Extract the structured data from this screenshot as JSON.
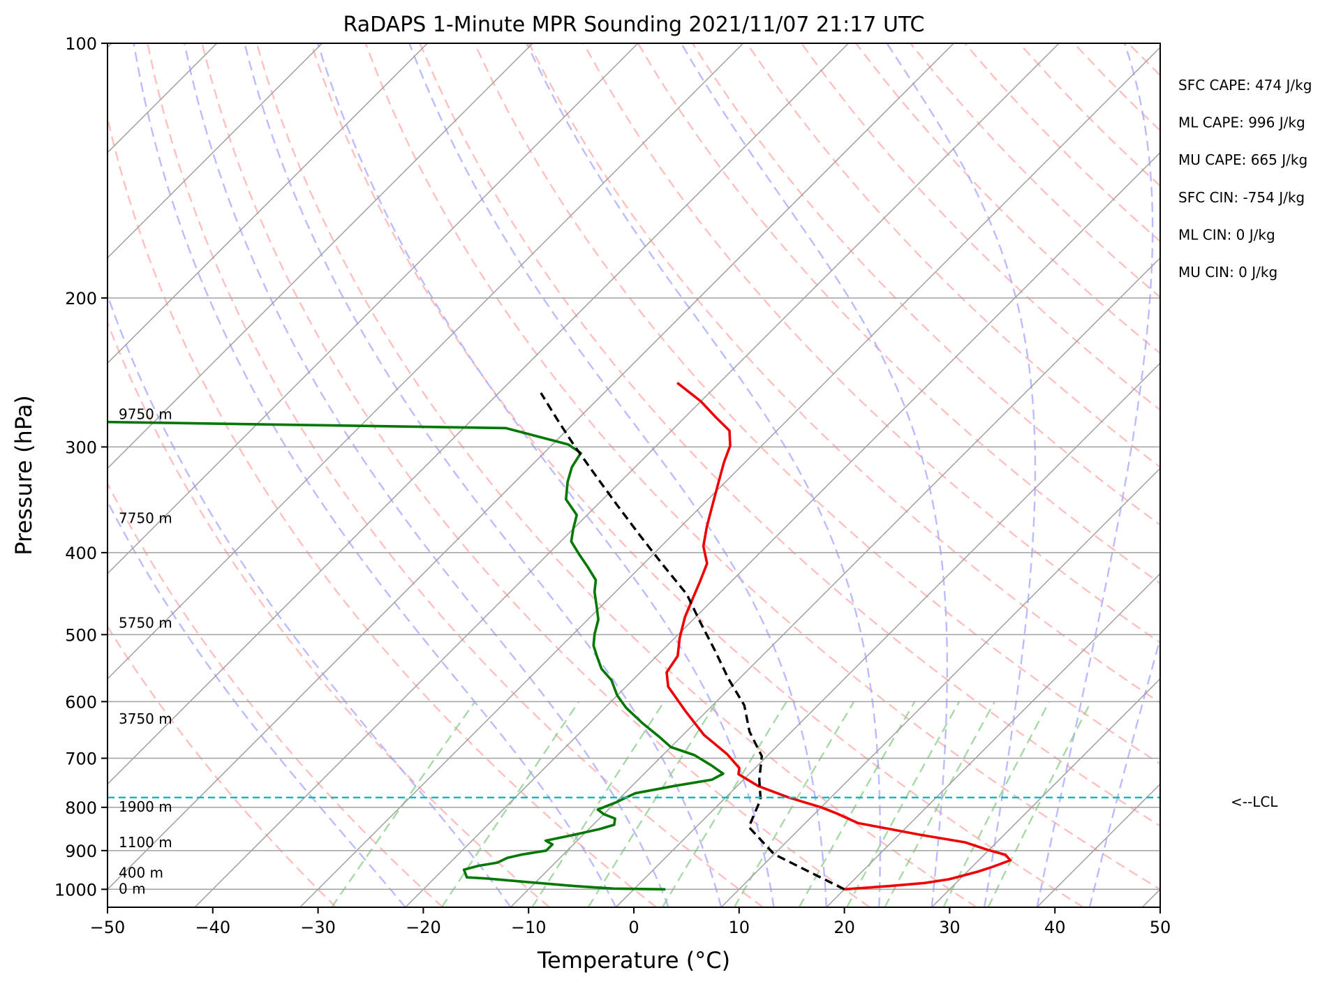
{
  "chart_data": {
    "type": "line",
    "title": "RaDAPS 1-Minute MPR Sounding 2021/11/07 21:17 UTC",
    "xlabel": "Temperature (°C)",
    "ylabel": "Pressure (hPa)",
    "xlim": [
      -50,
      50
    ],
    "ylim": [
      1050,
      100
    ],
    "y_scale": "log",
    "x_ticks": [
      -50,
      -40,
      -30,
      -20,
      -10,
      0,
      10,
      20,
      30,
      40,
      50
    ],
    "x_tick_labels": [
      "−50",
      "−40",
      "−30",
      "−20",
      "−10",
      "0",
      "10",
      "20",
      "30",
      "40",
      "50"
    ],
    "y_ticks": [
      100,
      200,
      300,
      400,
      500,
      600,
      700,
      800,
      900,
      1000
    ],
    "y_tick_labels": [
      "100",
      "200",
      "300",
      "400",
      "500",
      "600",
      "700",
      "800",
      "900",
      "1000"
    ],
    "grid": true,
    "skew": "skew-T (isotherms slanted)",
    "series": [
      {
        "role": "temperature",
        "color": "#ee0000",
        "points": [
          [
            20,
            1000
          ],
          [
            24,
            991
          ],
          [
            27,
            983
          ],
          [
            29,
            973
          ],
          [
            31,
            953
          ],
          [
            32,
            940
          ],
          [
            33,
            924
          ],
          [
            32,
            910
          ],
          [
            30,
            899
          ],
          [
            27,
            880
          ],
          [
            22,
            862
          ],
          [
            15,
            835
          ],
          [
            12,
            813
          ],
          [
            10,
            800
          ],
          [
            6,
            779
          ],
          [
            2,
            755
          ],
          [
            -1,
            731
          ],
          [
            -1.5,
            719
          ],
          [
            -4,
            692
          ],
          [
            -8,
            657
          ],
          [
            -12,
            616
          ],
          [
            -16,
            576
          ],
          [
            -17.5,
            554
          ],
          [
            -18,
            530
          ],
          [
            -19.5,
            505
          ],
          [
            -21,
            477
          ],
          [
            -22,
            454
          ],
          [
            -23,
            432
          ],
          [
            -24,
            412
          ],
          [
            -26,
            393
          ],
          [
            -27.5,
            373
          ],
          [
            -29,
            352
          ],
          [
            -30.5,
            332
          ],
          [
            -32,
            313
          ],
          [
            -33,
            299
          ],
          [
            -34.5,
            287
          ],
          [
            -37,
            277
          ],
          [
            -40,
            265
          ],
          [
            -44,
            252
          ]
        ]
      },
      {
        "role": "dewpoint",
        "color": "#007700",
        "points": [
          [
            3,
            1000
          ],
          [
            -2,
            998
          ],
          [
            -6,
            991
          ],
          [
            -11,
            980
          ],
          [
            -15,
            971
          ],
          [
            -17,
            968
          ],
          [
            -17.5,
            958
          ],
          [
            -18,
            948
          ],
          [
            -17,
            938
          ],
          [
            -15.5,
            930
          ],
          [
            -15,
            918
          ],
          [
            -14,
            910
          ],
          [
            -12,
            900
          ],
          [
            -12,
            885
          ],
          [
            -13,
            876
          ],
          [
            -11,
            863
          ],
          [
            -9,
            849
          ],
          [
            -8,
            839
          ],
          [
            -8.5,
            825
          ],
          [
            -10,
            815
          ],
          [
            -11,
            805
          ],
          [
            -10,
            790
          ],
          [
            -9,
            770
          ],
          [
            -6,
            755
          ],
          [
            -3,
            742
          ],
          [
            -2.5,
            730
          ],
          [
            -4.5,
            713
          ],
          [
            -7,
            694
          ],
          [
            -10,
            679
          ],
          [
            -12,
            661
          ],
          [
            -15,
            636
          ],
          [
            -18,
            610
          ],
          [
            -20,
            590
          ],
          [
            -22,
            566
          ],
          [
            -24,
            549
          ],
          [
            -25.5,
            532
          ],
          [
            -27,
            515
          ],
          [
            -28,
            499
          ],
          [
            -29,
            480
          ],
          [
            -30.5,
            462
          ],
          [
            -32,
            445
          ],
          [
            -33,
            431
          ],
          [
            -35,
            416
          ],
          [
            -37,
            402
          ],
          [
            -39,
            388
          ],
          [
            -40,
            375
          ],
          [
            -41,
            361
          ],
          [
            -43.5,
            346
          ],
          [
            -45,
            330
          ],
          [
            -46,
            317
          ],
          [
            -46.5,
            305
          ],
          [
            -48.5,
            298
          ],
          [
            -56,
            285
          ],
          [
            -97,
            280
          ]
        ]
      },
      {
        "role": "parcel",
        "color": "#000000",
        "style": "dashed",
        "points": [
          [
            20,
            1000
          ],
          [
            10,
            909
          ],
          [
            5,
            844
          ],
          [
            3.5,
            783
          ],
          [
            1.5,
            742
          ],
          [
            -0.5,
            696
          ],
          [
            -4,
            651
          ],
          [
            -7,
            606
          ],
          [
            -11,
            564
          ],
          [
            -15,
            522
          ],
          [
            -19,
            484
          ],
          [
            -23,
            448
          ],
          [
            -28,
            414
          ],
          [
            -33,
            382
          ],
          [
            -38,
            352
          ],
          [
            -43,
            324
          ],
          [
            -48,
            298
          ],
          [
            -52,
            278
          ],
          [
            -56,
            259
          ]
        ]
      }
    ],
    "lcl": {
      "pressure": 779,
      "label": "<--LCL",
      "color": "#00bbbb"
    },
    "height_labels": [
      {
        "text": "9750 m",
        "pressure": 275
      },
      {
        "text": "7750 m",
        "pressure": 365
      },
      {
        "text": "5750 m",
        "pressure": 485
      },
      {
        "text": "3750 m",
        "pressure": 630
      },
      {
        "text": "1900 m",
        "pressure": 800
      },
      {
        "text": "1100 m",
        "pressure": 882
      },
      {
        "text": "400 m",
        "pressure": 958
      },
      {
        "text": "0 m",
        "pressure": 1000
      }
    ],
    "indices": [
      "SFC CAPE: 474 J/kg",
      "ML CAPE: 996 J/kg",
      "MU CAPE: 665 J/kg",
      "SFC CIN: -754 J/kg",
      "ML CIN: 0 J/kg",
      "MU CIN: 0 J/kg"
    ],
    "background_lines": {
      "isotherms_color": "#a0a0a0",
      "dry_adiabats_color": "#ffaaaa",
      "moist_adiabats_color": "#aaaaff",
      "mixing_ratio_color": "#88cc88"
    }
  }
}
